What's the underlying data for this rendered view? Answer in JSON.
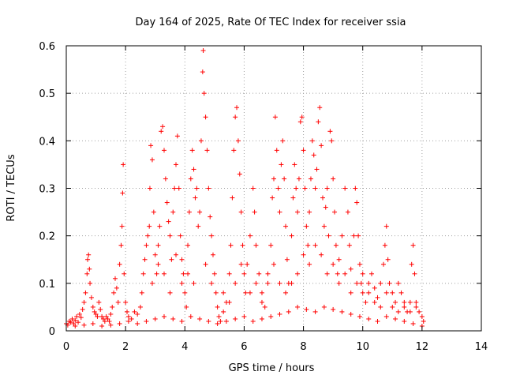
{
  "chart_data": {
    "type": "scatter",
    "title": "Day 164 of 2025, Rate Of TEC Index for receiver ssia",
    "xlabel": "GPS time / hours",
    "ylabel": "ROTI / TECUs",
    "xlim": [
      0,
      14
    ],
    "ylim": [
      0,
      0.6
    ],
    "x_ticks": [
      "0",
      "2",
      "4",
      "6",
      "8",
      "10",
      "12",
      "14"
    ],
    "y_ticks": [
      "0",
      "0.1",
      "0.2",
      "0.3",
      "0.4",
      "0.5",
      "0.6"
    ],
    "grid": true,
    "marker": "plus",
    "color": "#ff0000",
    "series": [
      {
        "name": "ROTI",
        "points": [
          [
            0.0,
            0.015
          ],
          [
            0.05,
            0.012
          ],
          [
            0.1,
            0.02
          ],
          [
            0.15,
            0.018
          ],
          [
            0.2,
            0.025
          ],
          [
            0.25,
            0.015
          ],
          [
            0.3,
            0.022
          ],
          [
            0.35,
            0.03
          ],
          [
            0.4,
            0.018
          ],
          [
            0.45,
            0.035
          ],
          [
            0.5,
            0.028
          ],
          [
            0.55,
            0.045
          ],
          [
            0.6,
            0.06
          ],
          [
            0.65,
            0.08
          ],
          [
            0.7,
            0.12
          ],
          [
            0.72,
            0.15
          ],
          [
            0.75,
            0.16
          ],
          [
            0.78,
            0.13
          ],
          [
            0.8,
            0.1
          ],
          [
            0.85,
            0.07
          ],
          [
            0.9,
            0.05
          ],
          [
            0.95,
            0.04
          ],
          [
            1.0,
            0.035
          ],
          [
            1.05,
            0.03
          ],
          [
            1.1,
            0.06
          ],
          [
            1.15,
            0.045
          ],
          [
            1.2,
            0.03
          ],
          [
            1.25,
            0.025
          ],
          [
            1.3,
            0.02
          ],
          [
            1.35,
            0.03
          ],
          [
            1.4,
            0.025
          ],
          [
            1.45,
            0.02
          ],
          [
            1.5,
            0.035
          ],
          [
            1.55,
            0.05
          ],
          [
            1.6,
            0.08
          ],
          [
            1.65,
            0.11
          ],
          [
            1.7,
            0.09
          ],
          [
            1.75,
            0.06
          ],
          [
            1.8,
            0.14
          ],
          [
            1.85,
            0.18
          ],
          [
            1.88,
            0.22
          ],
          [
            1.9,
            0.29
          ],
          [
            1.92,
            0.35
          ],
          [
            1.95,
            0.12
          ],
          [
            2.0,
            0.06
          ],
          [
            2.05,
            0.04
          ],
          [
            2.1,
            0.03
          ],
          [
            2.2,
            0.025
          ],
          [
            2.3,
            0.04
          ],
          [
            2.4,
            0.035
          ],
          [
            2.5,
            0.05
          ],
          [
            2.55,
            0.08
          ],
          [
            2.6,
            0.12
          ],
          [
            2.65,
            0.15
          ],
          [
            2.7,
            0.18
          ],
          [
            2.75,
            0.2
          ],
          [
            2.8,
            0.22
          ],
          [
            2.82,
            0.3
          ],
          [
            2.85,
            0.39
          ],
          [
            2.9,
            0.36
          ],
          [
            2.95,
            0.25
          ],
          [
            3.0,
            0.16
          ],
          [
            3.05,
            0.12
          ],
          [
            3.1,
            0.18
          ],
          [
            3.15,
            0.22
          ],
          [
            3.2,
            0.42
          ],
          [
            3.25,
            0.43
          ],
          [
            3.3,
            0.38
          ],
          [
            3.35,
            0.32
          ],
          [
            3.4,
            0.27
          ],
          [
            3.45,
            0.23
          ],
          [
            3.5,
            0.2
          ],
          [
            3.55,
            0.15
          ],
          [
            3.6,
            0.25
          ],
          [
            3.65,
            0.3
          ],
          [
            3.7,
            0.35
          ],
          [
            3.75,
            0.41
          ],
          [
            3.8,
            0.3
          ],
          [
            3.85,
            0.2
          ],
          [
            3.9,
            0.15
          ],
          [
            3.95,
            0.12
          ],
          [
            4.0,
            0.08
          ],
          [
            4.05,
            0.05
          ],
          [
            4.1,
            0.18
          ],
          [
            4.15,
            0.25
          ],
          [
            4.2,
            0.32
          ],
          [
            4.25,
            0.38
          ],
          [
            4.3,
            0.34
          ],
          [
            4.35,
            0.28
          ],
          [
            4.4,
            0.3
          ],
          [
            4.45,
            0.22
          ],
          [
            4.5,
            0.25
          ],
          [
            4.55,
            0.4
          ],
          [
            4.6,
            0.545
          ],
          [
            4.62,
            0.59
          ],
          [
            4.65,
            0.5
          ],
          [
            4.7,
            0.45
          ],
          [
            4.75,
            0.38
          ],
          [
            4.8,
            0.3
          ],
          [
            4.85,
            0.24
          ],
          [
            4.9,
            0.2
          ],
          [
            4.95,
            0.16
          ],
          [
            5.0,
            0.12
          ],
          [
            5.05,
            0.08
          ],
          [
            5.1,
            0.05
          ],
          [
            5.15,
            0.03
          ],
          [
            5.2,
            0.02
          ],
          [
            5.3,
            0.04
          ],
          [
            5.4,
            0.06
          ],
          [
            5.5,
            0.12
          ],
          [
            5.55,
            0.18
          ],
          [
            5.6,
            0.28
          ],
          [
            5.65,
            0.38
          ],
          [
            5.7,
            0.45
          ],
          [
            5.75,
            0.47
          ],
          [
            5.8,
            0.4
          ],
          [
            5.85,
            0.33
          ],
          [
            5.9,
            0.25
          ],
          [
            5.95,
            0.18
          ],
          [
            6.0,
            0.12
          ],
          [
            6.05,
            0.08
          ],
          [
            6.1,
            0.14
          ],
          [
            6.2,
            0.2
          ],
          [
            6.3,
            0.3
          ],
          [
            6.35,
            0.25
          ],
          [
            6.4,
            0.18
          ],
          [
            6.5,
            0.12
          ],
          [
            6.6,
            0.08
          ],
          [
            6.7,
            0.05
          ],
          [
            6.8,
            0.1
          ],
          [
            6.9,
            0.18
          ],
          [
            6.95,
            0.28
          ],
          [
            7.0,
            0.32
          ],
          [
            7.05,
            0.45
          ],
          [
            7.1,
            0.38
          ],
          [
            7.15,
            0.3
          ],
          [
            7.2,
            0.25
          ],
          [
            7.25,
            0.35
          ],
          [
            7.3,
            0.4
          ],
          [
            7.35,
            0.32
          ],
          [
            7.4,
            0.22
          ],
          [
            7.45,
            0.15
          ],
          [
            7.5,
            0.1
          ],
          [
            7.6,
            0.2
          ],
          [
            7.65,
            0.28
          ],
          [
            7.7,
            0.35
          ],
          [
            7.75,
            0.3
          ],
          [
            7.8,
            0.25
          ],
          [
            7.85,
            0.32
          ],
          [
            7.9,
            0.44
          ],
          [
            7.95,
            0.45
          ],
          [
            8.0,
            0.38
          ],
          [
            8.05,
            0.3
          ],
          [
            8.1,
            0.22
          ],
          [
            8.15,
            0.18
          ],
          [
            8.2,
            0.25
          ],
          [
            8.25,
            0.32
          ],
          [
            8.3,
            0.4
          ],
          [
            8.35,
            0.37
          ],
          [
            8.4,
            0.3
          ],
          [
            8.45,
            0.34
          ],
          [
            8.5,
            0.44
          ],
          [
            8.55,
            0.47
          ],
          [
            8.6,
            0.39
          ],
          [
            8.65,
            0.28
          ],
          [
            8.7,
            0.22
          ],
          [
            8.75,
            0.26
          ],
          [
            8.8,
            0.3
          ],
          [
            8.85,
            0.2
          ],
          [
            8.9,
            0.42
          ],
          [
            8.95,
            0.4
          ],
          [
            9.0,
            0.32
          ],
          [
            9.05,
            0.25
          ],
          [
            9.1,
            0.18
          ],
          [
            9.15,
            0.12
          ],
          [
            9.2,
            0.15
          ],
          [
            9.3,
            0.2
          ],
          [
            9.4,
            0.3
          ],
          [
            9.5,
            0.25
          ],
          [
            9.55,
            0.18
          ],
          [
            9.6,
            0.13
          ],
          [
            9.7,
            0.2
          ],
          [
            9.75,
            0.3
          ],
          [
            9.8,
            0.27
          ],
          [
            9.85,
            0.2
          ],
          [
            9.9,
            0.14
          ],
          [
            9.95,
            0.1
          ],
          [
            10.0,
            0.08
          ],
          [
            10.1,
            0.06
          ],
          [
            10.2,
            0.1
          ],
          [
            10.3,
            0.12
          ],
          [
            10.4,
            0.09
          ],
          [
            10.5,
            0.07
          ],
          [
            10.6,
            0.1
          ],
          [
            10.7,
            0.14
          ],
          [
            10.75,
            0.18
          ],
          [
            10.8,
            0.22
          ],
          [
            10.85,
            0.15
          ],
          [
            10.9,
            0.1
          ],
          [
            11.0,
            0.08
          ],
          [
            11.1,
            0.06
          ],
          [
            11.2,
            0.1
          ],
          [
            11.3,
            0.08
          ],
          [
            11.4,
            0.05
          ],
          [
            11.5,
            0.04
          ],
          [
            11.6,
            0.06
          ],
          [
            11.65,
            0.14
          ],
          [
            11.7,
            0.18
          ],
          [
            11.75,
            0.12
          ],
          [
            11.8,
            0.06
          ],
          [
            11.9,
            0.04
          ],
          [
            12.0,
            0.03
          ],
          [
            12.05,
            0.02
          ],
          [
            0.3,
            0.01
          ],
          [
            0.6,
            0.012
          ],
          [
            0.9,
            0.015
          ],
          [
            1.2,
            0.01
          ],
          [
            1.5,
            0.012
          ],
          [
            1.8,
            0.015
          ],
          [
            2.1,
            0.02
          ],
          [
            2.4,
            0.015
          ],
          [
            2.7,
            0.02
          ],
          [
            3.0,
            0.025
          ],
          [
            3.3,
            0.03
          ],
          [
            3.6,
            0.025
          ],
          [
            3.9,
            0.02
          ],
          [
            4.2,
            0.03
          ],
          [
            4.5,
            0.025
          ],
          [
            4.8,
            0.02
          ],
          [
            5.1,
            0.015
          ],
          [
            5.4,
            0.02
          ],
          [
            5.7,
            0.025
          ],
          [
            6.0,
            0.03
          ],
          [
            6.3,
            0.02
          ],
          [
            6.6,
            0.025
          ],
          [
            6.9,
            0.03
          ],
          [
            7.2,
            0.035
          ],
          [
            7.5,
            0.04
          ],
          [
            7.8,
            0.05
          ],
          [
            8.1,
            0.045
          ],
          [
            8.4,
            0.04
          ],
          [
            8.7,
            0.05
          ],
          [
            9.0,
            0.045
          ],
          [
            9.3,
            0.04
          ],
          [
            9.6,
            0.035
          ],
          [
            9.9,
            0.03
          ],
          [
            10.2,
            0.025
          ],
          [
            10.5,
            0.02
          ],
          [
            10.8,
            0.03
          ],
          [
            11.1,
            0.025
          ],
          [
            11.4,
            0.02
          ],
          [
            11.7,
            0.015
          ],
          [
            12.0,
            0.01
          ],
          [
            2.9,
            0.1
          ],
          [
            3.1,
            0.14
          ],
          [
            3.3,
            0.12
          ],
          [
            3.5,
            0.08
          ],
          [
            3.7,
            0.16
          ],
          [
            3.9,
            0.1
          ],
          [
            4.1,
            0.12
          ],
          [
            4.3,
            0.1
          ],
          [
            4.7,
            0.14
          ],
          [
            4.9,
            0.1
          ],
          [
            5.3,
            0.08
          ],
          [
            5.5,
            0.06
          ],
          [
            5.7,
            0.1
          ],
          [
            5.9,
            0.14
          ],
          [
            6.2,
            0.08
          ],
          [
            6.4,
            0.1
          ],
          [
            6.6,
            0.06
          ],
          [
            6.8,
            0.12
          ],
          [
            7.0,
            0.14
          ],
          [
            7.2,
            0.1
          ],
          [
            7.4,
            0.08
          ],
          [
            7.6,
            0.1
          ],
          [
            7.8,
            0.12
          ],
          [
            8.0,
            0.16
          ],
          [
            8.2,
            0.14
          ],
          [
            8.4,
            0.18
          ],
          [
            8.6,
            0.16
          ],
          [
            8.8,
            0.12
          ],
          [
            9.0,
            0.14
          ],
          [
            9.2,
            0.1
          ],
          [
            9.4,
            0.12
          ],
          [
            9.6,
            0.08
          ],
          [
            9.8,
            0.1
          ],
          [
            10.0,
            0.12
          ],
          [
            10.2,
            0.08
          ],
          [
            10.4,
            0.06
          ],
          [
            10.6,
            0.05
          ],
          [
            10.8,
            0.08
          ],
          [
            11.0,
            0.05
          ],
          [
            11.2,
            0.04
          ],
          [
            11.4,
            0.06
          ],
          [
            11.6,
            0.04
          ],
          [
            11.8,
            0.05
          ]
        ]
      }
    ]
  }
}
